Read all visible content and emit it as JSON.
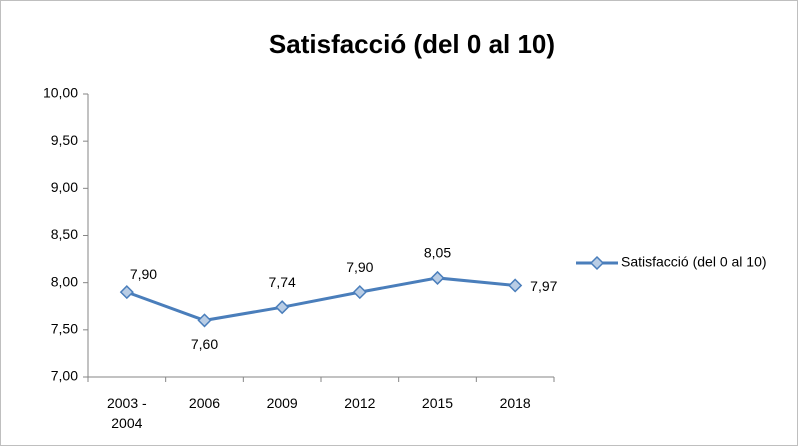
{
  "chart_data": {
    "type": "line",
    "title": "Satisfacció (del 0 al 10)",
    "categories": [
      "2003 - 2004",
      "2006",
      "2009",
      "2012",
      "2015",
      "2018"
    ],
    "series": [
      {
        "name": "Satisfacció (del 0 al 10)",
        "color": "#4a7ebb",
        "marker_fill": "#b9cde5",
        "values": [
          7.9,
          7.6,
          7.74,
          7.9,
          8.05,
          7.97
        ],
        "value_labels": [
          "7,90",
          "7,60",
          "7,74",
          "7,90",
          "8,05",
          "7,97"
        ]
      }
    ],
    "ylim": [
      7,
      10
    ],
    "yticks": [
      {
        "value": 7,
        "label": "7,00"
      },
      {
        "value": 7.5,
        "label": "7,50"
      },
      {
        "value": 8,
        "label": "8,00"
      },
      {
        "value": 8.5,
        "label": "8,50"
      },
      {
        "value": 9,
        "label": "9,00"
      },
      {
        "value": 9.5,
        "label": "9,50"
      },
      {
        "value": 10,
        "label": "10,00"
      }
    ],
    "grid": false,
    "legend": "right"
  }
}
